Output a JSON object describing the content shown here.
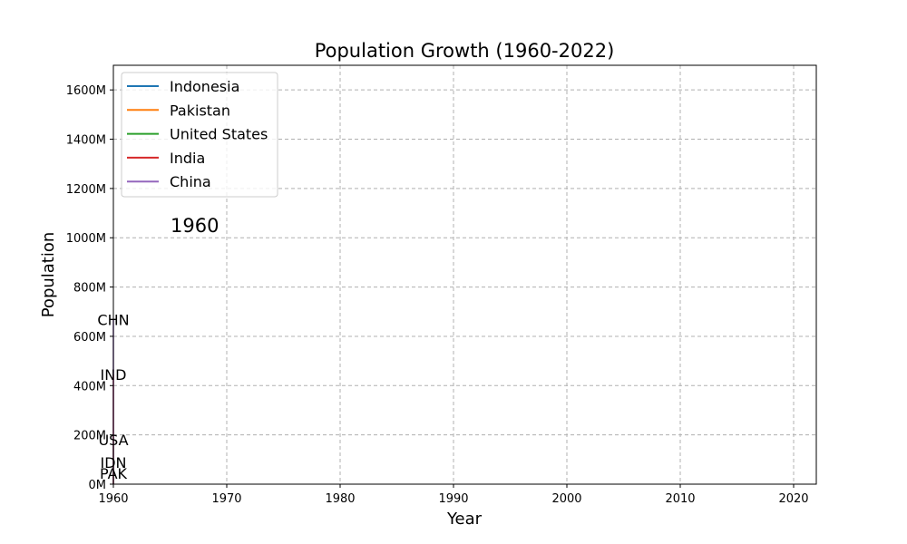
{
  "chart_data": {
    "type": "line",
    "title": "Population Growth (1960-2022)",
    "xlabel": "Year",
    "ylabel": "Population",
    "xlim": [
      1960,
      2022
    ],
    "ylim": [
      0,
      1700
    ],
    "x_ticks": [
      1960,
      1970,
      1980,
      1990,
      2000,
      2010,
      2020
    ],
    "x_tick_labels": [
      "1960",
      "1970",
      "1980",
      "1990",
      "2000",
      "2010",
      "2020"
    ],
    "y_ticks": [
      0,
      200,
      400,
      600,
      800,
      1000,
      1200,
      1400,
      1600
    ],
    "y_tick_labels": [
      "0M",
      "200M",
      "400M",
      "600M",
      "800M",
      "1000M",
      "1200M",
      "1400M",
      "1600M"
    ],
    "grid": true,
    "legend_position": "top-left",
    "current_year_label": "1960",
    "series": [
      {
        "name": "Indonesia",
        "code": "IDN",
        "color": "#1f77b4",
        "x": [
          1960
        ],
        "values": [
          88
        ]
      },
      {
        "name": "Pakistan",
        "code": "PAK",
        "color": "#ff7f0e",
        "x": [
          1960
        ],
        "values": [
          45
        ]
      },
      {
        "name": "United States",
        "code": "USA",
        "color": "#2ca02c",
        "x": [
          1960
        ],
        "values": [
          181
        ]
      },
      {
        "name": "India",
        "code": "IND",
        "color": "#d62728",
        "x": [
          1960
        ],
        "values": [
          445
        ]
      },
      {
        "name": "China",
        "code": "CHN",
        "color": "#9467bd",
        "x": [
          1960
        ],
        "values": [
          667
        ]
      }
    ]
  }
}
